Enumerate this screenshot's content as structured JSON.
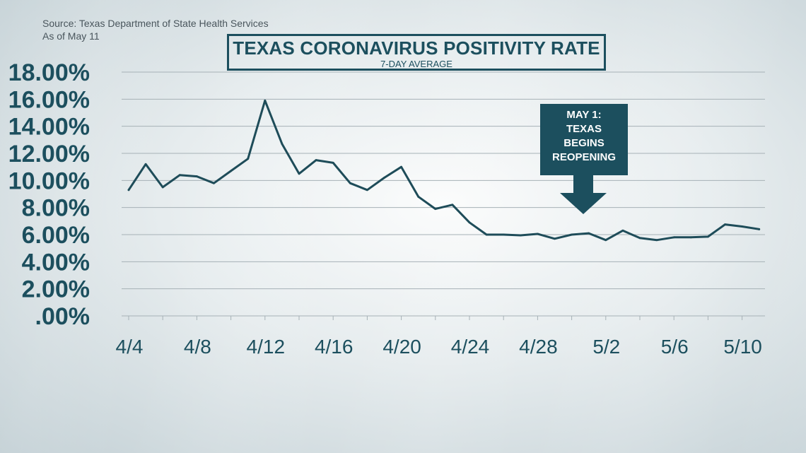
{
  "source_lines": {
    "line1": "Source: Texas Department of State Health Services",
    "line2": "As of May 11"
  },
  "title": "TEXAS CORONAVIRUS POSITIVITY RATE",
  "subtitle": "7-DAY AVERAGE",
  "callout": {
    "lines": [
      "MAY 1:",
      "TEXAS",
      "BEGINS",
      "REOPENING"
    ]
  },
  "colors": {
    "primary": "#1c4f5e",
    "line": "#1e4c59",
    "grid": "#a6b1b6"
  },
  "chart_data": {
    "type": "line",
    "title": "TEXAS CORONAVIRUS POSITIVITY RATE",
    "subtitle": "7-DAY AVERAGE",
    "xlabel": "",
    "ylabel": "",
    "ylim": [
      0,
      18
    ],
    "yticks": [
      18,
      16,
      14,
      12,
      10,
      8,
      6,
      4,
      2,
      0
    ],
    "ytick_labels": [
      "18.00%",
      "16.00%",
      "14.00%",
      "12.00%",
      "10.00%",
      "8.00%",
      "6.00%",
      "4.00%",
      "2.00%",
      ".00%"
    ],
    "xtick_labels": [
      "4/4",
      "4/8",
      "4/12",
      "4/16",
      "4/20",
      "4/24",
      "4/28",
      "5/2",
      "5/6",
      "5/10"
    ],
    "grid": true,
    "x": [
      "4/4",
      "4/5",
      "4/6",
      "4/7",
      "4/8",
      "4/9",
      "4/10",
      "4/11",
      "4/12",
      "4/13",
      "4/14",
      "4/15",
      "4/16",
      "4/17",
      "4/18",
      "4/19",
      "4/20",
      "4/21",
      "4/22",
      "4/23",
      "4/24",
      "4/25",
      "4/26",
      "4/27",
      "4/28",
      "4/29",
      "4/30",
      "5/1",
      "5/2",
      "5/3",
      "5/4",
      "5/5",
      "5/6",
      "5/7",
      "5/8",
      "5/9",
      "5/10",
      "5/11"
    ],
    "values": [
      9.3,
      11.2,
      9.5,
      10.4,
      10.3,
      9.8,
      10.7,
      11.6,
      15.9,
      12.7,
      10.5,
      11.5,
      11.3,
      9.8,
      9.3,
      10.2,
      11.0,
      8.8,
      7.9,
      8.2,
      6.9,
      6.0,
      6.0,
      5.95,
      6.05,
      5.7,
      6.0,
      6.1,
      5.6,
      6.3,
      5.75,
      5.6,
      5.8,
      5.8,
      5.85,
      6.75,
      6.6,
      6.4
    ]
  }
}
